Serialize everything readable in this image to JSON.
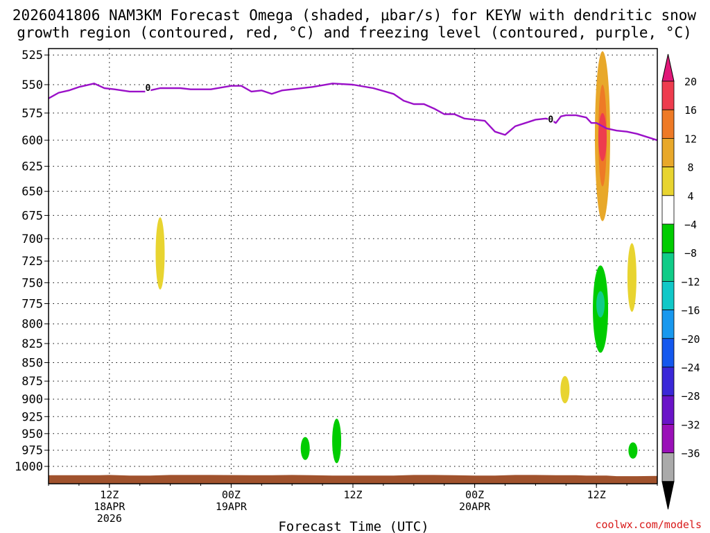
{
  "chart_data": {
    "type": "heatmap",
    "title": "2026041806 NAM3KM Forecast Omega (shaded, μbar/s) for KEYW with dendritic snow",
    "subtitle": "growth region (contoured, red, °C) and freezing level (contoured, purple, °C)",
    "xlabel": "Forecast Time (UTC)",
    "ylabel": "",
    "credit": "coolwx.com/models",
    "y_axis": {
      "reversed": true,
      "ticks": [
        525,
        550,
        575,
        600,
        625,
        650,
        675,
        700,
        725,
        750,
        775,
        800,
        825,
        850,
        875,
        900,
        925,
        950,
        975,
        1000
      ],
      "tick_labels": [
        "525",
        "550",
        "575",
        "600",
        "625",
        "650",
        "675",
        "700",
        "725",
        "750",
        "775",
        "800",
        "825",
        "850",
        "875",
        "900",
        "925",
        "950",
        "975",
        "1000"
      ]
    },
    "x_axis": {
      "range_hours": [
        0,
        60
      ],
      "ticks": [
        {
          "hour": 6,
          "line1": "12Z",
          "line2": "18APR",
          "line3": "2026"
        },
        {
          "hour": 18,
          "line1": "00Z",
          "line2": "19APR",
          "line3": ""
        },
        {
          "hour": 30,
          "line1": "12Z",
          "line2": "",
          "line3": ""
        },
        {
          "hour": 42,
          "line1": "00Z",
          "line2": "20APR",
          "line3": ""
        },
        {
          "hour": 54,
          "line1": "12Z",
          "line2": "",
          "line3": ""
        }
      ]
    },
    "grid": true,
    "colorbar": {
      "levels": [
        20,
        16,
        12,
        8,
        4,
        -4,
        -8,
        -12,
        -16,
        -20,
        -24,
        -28,
        -32,
        -36
      ],
      "colors": [
        "#ee3c4e",
        "#ee7a26",
        "#e8a82a",
        "#e8d430",
        "#ffffff",
        "#00cc00",
        "#10cc88",
        "#10c8c8",
        "#1898ee",
        "#1458ee",
        "#3a28d8",
        "#6a14c8",
        "#9a10b8",
        "#aaaaaa"
      ],
      "top_color": "#e01878",
      "bottom_color": "#000000"
    },
    "freezing_level": {
      "label": "0",
      "color": "#9a10c8",
      "hours": [
        0,
        1,
        2,
        3,
        4.5,
        5.5,
        6.5,
        8,
        9.5,
        11,
        12,
        13,
        14,
        16,
        18,
        19,
        20,
        21,
        22,
        23,
        24,
        26,
        28,
        30,
        32,
        34,
        35,
        36,
        37,
        38,
        39,
        40,
        41,
        42,
        43,
        44,
        45,
        46,
        47,
        48,
        49,
        49.5,
        50,
        50.5,
        51,
        52,
        53,
        53.5,
        54,
        55,
        56,
        57,
        58,
        59,
        60
      ],
      "hpa": [
        562,
        557,
        555,
        552,
        549,
        553,
        554,
        556,
        556,
        553,
        553,
        553,
        554,
        554,
        551,
        551,
        556,
        555,
        558,
        555,
        554,
        552,
        549,
        550,
        553,
        558,
        564,
        567,
        567,
        571,
        576,
        576,
        580,
        581,
        582,
        592,
        595,
        587,
        584,
        581,
        580,
        581,
        584,
        578,
        577,
        577,
        579,
        584,
        584,
        589,
        591,
        592,
        594,
        597,
        600
      ]
    },
    "omega_features": [
      {
        "hour": 11,
        "p_top": 677,
        "p_bottom": 758,
        "value": 5
      },
      {
        "hour": 25.3,
        "p_top": 955,
        "p_bottom": 990,
        "value": -6
      },
      {
        "hour": 28.4,
        "p_top": 928,
        "p_bottom": 995,
        "value": -6
      },
      {
        "hour": 50.9,
        "p_top": 868,
        "p_bottom": 906,
        "value": 5
      },
      {
        "hour": 54.6,
        "p_top": 522,
        "p_bottom": 681,
        "value": 8
      },
      {
        "hour": 54.6,
        "p_top": 550,
        "p_bottom": 645,
        "value": 13
      },
      {
        "hour": 54.6,
        "p_top": 575,
        "p_bottom": 620,
        "value": 18
      },
      {
        "hour": 54.4,
        "p_top": 730,
        "p_bottom": 837,
        "value": -6
      },
      {
        "hour": 54.4,
        "p_top": 760,
        "p_bottom": 792,
        "value": -10
      },
      {
        "hour": 57.5,
        "p_top": 705,
        "p_bottom": 785,
        "value": 5
      },
      {
        "hour": 57.6,
        "p_top": 963,
        "p_bottom": 988,
        "value": -6
      }
    ],
    "terrain": {
      "color": "#a0522d",
      "hours": [
        0,
        5,
        6,
        8,
        10,
        12,
        14,
        16,
        20,
        22,
        24,
        26,
        28,
        30,
        32,
        34,
        36,
        38,
        40,
        42,
        44,
        46,
        48,
        50,
        52,
        53,
        55,
        56,
        58,
        60
      ],
      "hpa": [
        1014,
        1014,
        1013.5,
        1014.5,
        1014.5,
        1013.5,
        1013.5,
        1013.5,
        1014,
        1014,
        1013.5,
        1014,
        1014.5,
        1014.5,
        1014.5,
        1014.5,
        1013.5,
        1013.5,
        1014,
        1014.5,
        1014.5,
        1013.5,
        1013.5,
        1014,
        1014,
        1014.5,
        1014.5,
        1015.5,
        1015.5,
        1015
      ]
    }
  }
}
